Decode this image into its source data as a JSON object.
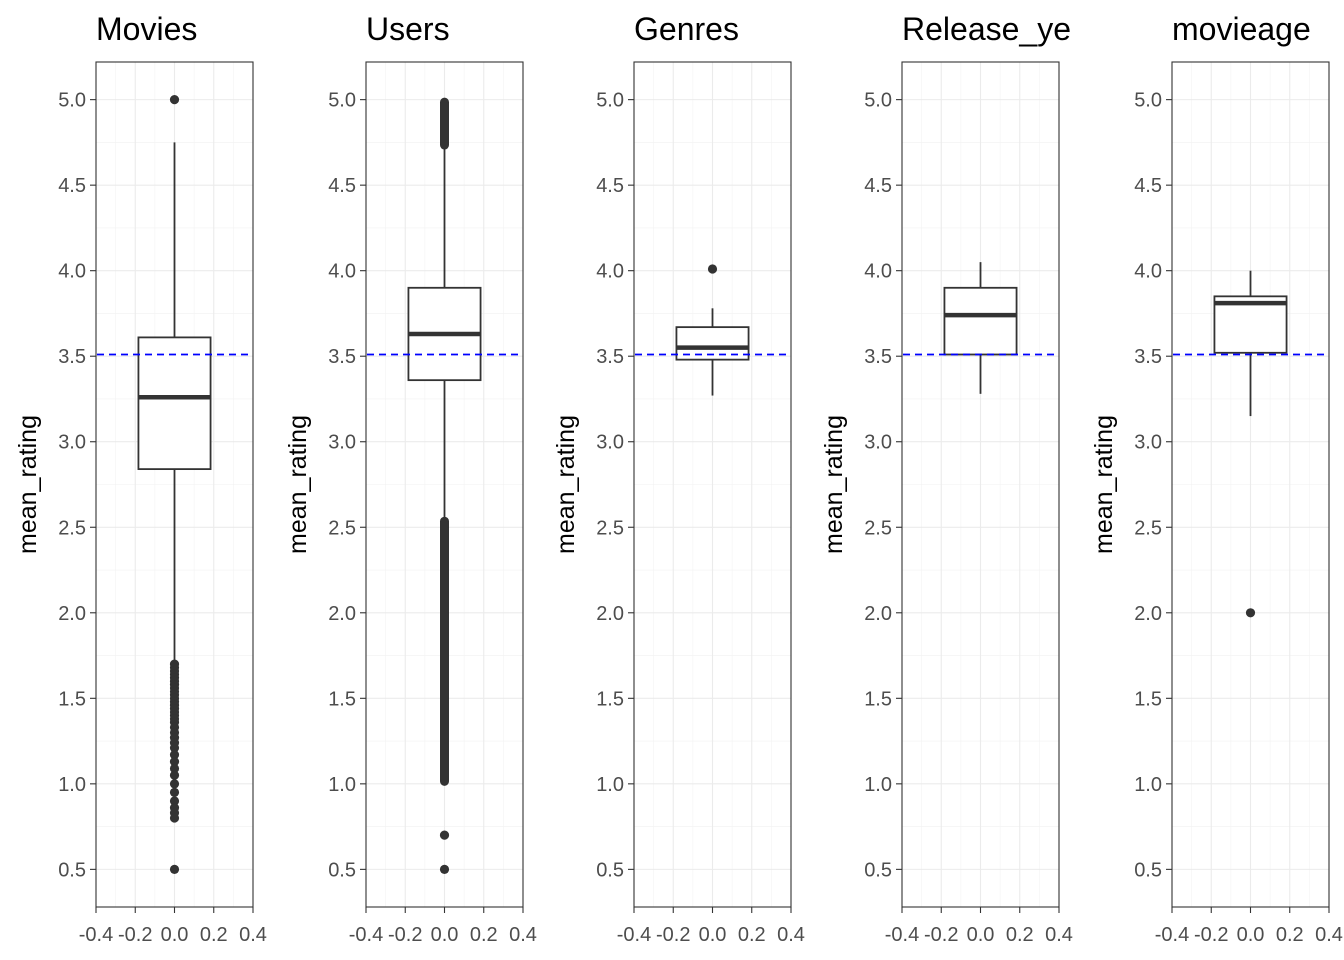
{
  "chart_data": [
    {
      "type": "boxplot",
      "title": "Movies",
      "ylabel": "mean_rating",
      "xlim": [
        -0.4,
        0.4
      ],
      "ylim": [
        0.28,
        5.22
      ],
      "x_ticks": [
        "-0.4",
        "-0.2",
        "0.0",
        "0.2",
        "0.4"
      ],
      "y_ticks": [
        "0.5",
        "1.0",
        "1.5",
        "2.0",
        "2.5",
        "3.0",
        "3.5",
        "4.0",
        "4.5",
        "5.0"
      ],
      "box": {
        "q1": 2.84,
        "median": 3.26,
        "q3": 3.61,
        "whisker_low": 1.7,
        "whisker_high": 4.75
      },
      "outliers": [
        5.0,
        1.7,
        1.68,
        1.66,
        1.64,
        1.62,
        1.6,
        1.58,
        1.56,
        1.54,
        1.52,
        1.5,
        1.48,
        1.46,
        1.44,
        1.42,
        1.4,
        1.38,
        1.36,
        1.33,
        1.3,
        1.27,
        1.24,
        1.21,
        1.17,
        1.13,
        1.09,
        1.05,
        1.0,
        0.95,
        0.9,
        0.86,
        0.83,
        0.8,
        0.5
      ],
      "mean_line": 3.51,
      "grid": true
    },
    {
      "type": "boxplot",
      "title": "Users",
      "ylabel": "mean_rating",
      "xlim": [
        -0.4,
        0.4
      ],
      "ylim": [
        0.28,
        5.22
      ],
      "x_ticks": [
        "-0.4",
        "-0.2",
        "0.0",
        "0.2",
        "0.4"
      ],
      "y_ticks": [
        "0.5",
        "1.0",
        "1.5",
        "2.0",
        "2.5",
        "3.0",
        "3.5",
        "4.0",
        "4.5",
        "5.0"
      ],
      "box": {
        "q1": 3.36,
        "median": 3.63,
        "q3": 3.9,
        "whisker_low": 2.55,
        "whisker_high": 4.72
      },
      "outlier_ranges": [
        [
          4.72,
          5.0
        ],
        [
          1.0,
          2.55
        ]
      ],
      "outliers": [
        0.7,
        0.5
      ],
      "mean_line": 3.51,
      "grid": true
    },
    {
      "type": "boxplot",
      "title": "Genres",
      "ylabel": "mean_rating",
      "xlim": [
        -0.4,
        0.4
      ],
      "ylim": [
        0.28,
        5.22
      ],
      "x_ticks": [
        "-0.4",
        "-0.2",
        "0.0",
        "0.2",
        "0.4"
      ],
      "y_ticks": [
        "0.5",
        "1.0",
        "1.5",
        "2.0",
        "2.5",
        "3.0",
        "3.5",
        "4.0",
        "4.5",
        "5.0"
      ],
      "box": {
        "q1": 3.48,
        "median": 3.55,
        "q3": 3.67,
        "whisker_low": 3.27,
        "whisker_high": 3.78
      },
      "outliers": [
        4.01
      ],
      "mean_line": 3.51,
      "grid": true
    },
    {
      "type": "boxplot",
      "title": "Release_ye",
      "ylabel": "mean_rating",
      "xlim": [
        -0.4,
        0.4
      ],
      "ylim": [
        0.28,
        5.22
      ],
      "x_ticks": [
        "-0.4",
        "-0.2",
        "0.0",
        "0.2",
        "0.4"
      ],
      "y_ticks": [
        "0.5",
        "1.0",
        "1.5",
        "2.0",
        "2.5",
        "3.0",
        "3.5",
        "4.0",
        "4.5",
        "5.0"
      ],
      "box": {
        "q1": 3.51,
        "median": 3.74,
        "q3": 3.9,
        "whisker_low": 3.28,
        "whisker_high": 4.05
      },
      "outliers": [],
      "mean_line": 3.51,
      "grid": true
    },
    {
      "type": "boxplot",
      "title": "movieage",
      "ylabel": "mean_rating",
      "xlim": [
        -0.4,
        0.4
      ],
      "ylim": [
        0.28,
        5.22
      ],
      "x_ticks": [
        "-0.4",
        "-0.2",
        "0.0",
        "0.2",
        "0.4"
      ],
      "y_ticks": [
        "0.5",
        "1.0",
        "1.5",
        "2.0",
        "2.5",
        "3.0",
        "3.5",
        "4.0",
        "4.5",
        "5.0"
      ],
      "box": {
        "q1": 3.52,
        "median": 3.81,
        "q3": 3.85,
        "whisker_low": 3.15,
        "whisker_high": 4.0
      },
      "outliers": [
        2.0
      ],
      "mean_line": 3.51,
      "grid": true
    }
  ],
  "colors": {
    "mean_line": "#0000ff",
    "box_stroke": "#333333",
    "outlier": "#333333",
    "grid_major": "#ebebeb",
    "grid_minor": "#f2f2f2",
    "tick_text": "#4d4d4d"
  }
}
